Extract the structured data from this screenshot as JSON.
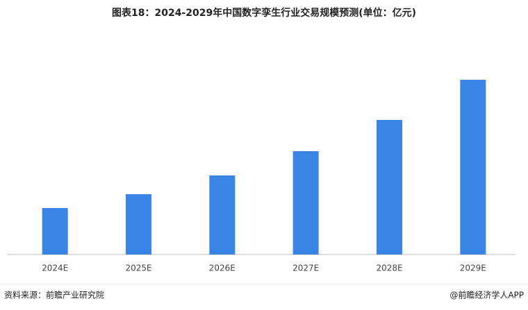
{
  "chart_data": {
    "type": "bar",
    "title": "图表18：2024-2029年中国数字孪生行业交易规模预测(单位：亿元)",
    "categories": [
      "2024E",
      "2025E",
      "2026E",
      "2027E",
      "2028E",
      "2029E"
    ],
    "values": [
      67,
      87,
      114,
      149,
      194,
      252
    ],
    "color": "#3a84e6",
    "source": "资料来源：前瞻产业研究院",
    "credit": "@前瞻经济学人APP"
  }
}
